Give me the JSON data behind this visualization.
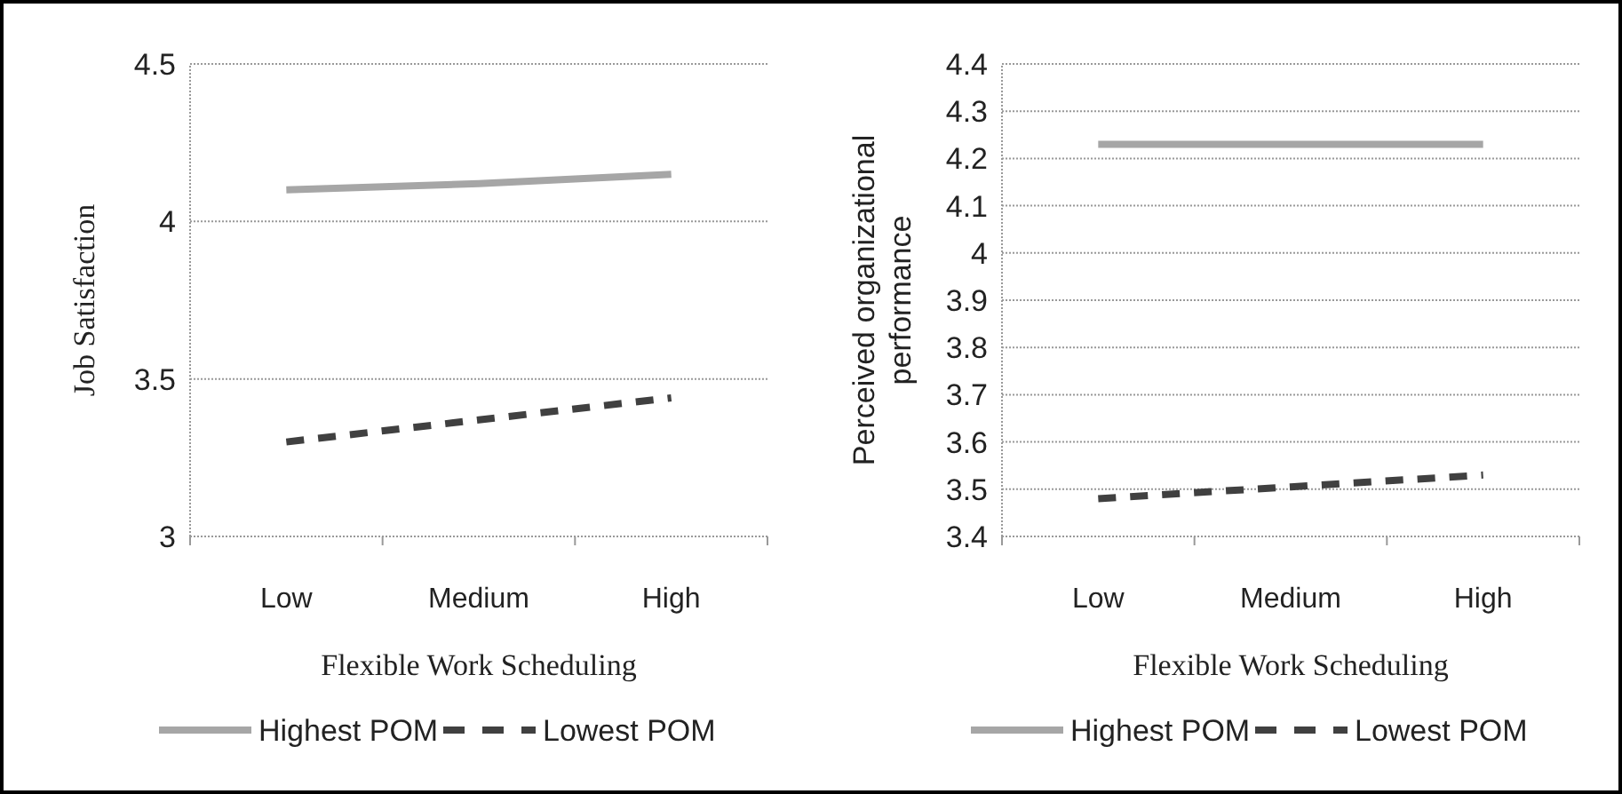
{
  "chart_data": [
    {
      "type": "line",
      "xlabel": "Flexible Work Scheduling",
      "ylabel": "Job Satisfaction",
      "categories": [
        "Low",
        "Medium",
        "High"
      ],
      "ylim": [
        3,
        4.5
      ],
      "yticks": [
        3,
        3.5,
        4,
        4.5
      ],
      "grid": "y",
      "legend": "bottom",
      "marker": "none",
      "series": [
        {
          "name": "Highest POM",
          "color": "#a6a6a6",
          "line_style": "solid",
          "values": [
            4.1,
            4.12,
            4.15
          ]
        },
        {
          "name": "Lowest POM",
          "color": "#404040",
          "line_style": "dashed",
          "values": [
            3.3,
            3.37,
            3.44
          ]
        }
      ]
    },
    {
      "type": "line",
      "xlabel": "Flexible Work Scheduling",
      "ylabel": "Perceived organizational performance",
      "categories": [
        "Low",
        "Medium",
        "High"
      ],
      "ylim": [
        3.4,
        4.4
      ],
      "yticks": [
        3.4,
        3.5,
        3.6,
        3.7,
        3.8,
        3.9,
        4,
        4.1,
        4.2,
        4.3,
        4.4
      ],
      "grid": "y",
      "legend": "bottom",
      "marker": "none",
      "series": [
        {
          "name": "Highest POM",
          "color": "#a6a6a6",
          "line_style": "solid",
          "values": [
            4.23,
            4.23,
            4.23
          ]
        },
        {
          "name": "Lowest POM",
          "color": "#404040",
          "line_style": "dashed",
          "values": [
            3.48,
            3.505,
            3.53
          ]
        }
      ]
    }
  ]
}
